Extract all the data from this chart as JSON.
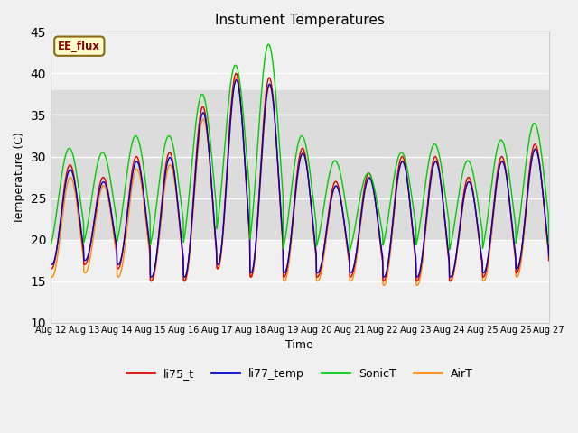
{
  "title": "Instument Temperatures",
  "xlabel": "Time",
  "ylabel": "Temperature (C)",
  "ylim": [
    10,
    45
  ],
  "xlim": [
    0,
    360
  ],
  "tick_labels": [
    "Aug 12",
    "Aug 13",
    "Aug 14",
    "Aug 15",
    "Aug 16",
    "Aug 17",
    "Aug 18",
    "Aug 19",
    "Aug 20",
    "Aug 21",
    "Aug 22",
    "Aug 23",
    "Aug 24",
    "Aug 25",
    "Aug 26",
    "Aug 27"
  ],
  "tick_positions": [
    0,
    24,
    48,
    72,
    96,
    120,
    144,
    168,
    192,
    216,
    240,
    264,
    288,
    312,
    336,
    360
  ],
  "shaded_band": [
    20,
    38
  ],
  "shaded_color": "#dcdcdc",
  "annotation_text": "EE_flux",
  "annotation_color": "#8b0000",
  "annotation_bg": "#ffffcc",
  "annotation_border": "#8b6914",
  "colors": {
    "li75_t": "#dd0000",
    "li77_temp": "#0000cc",
    "SonicT": "#00cc00",
    "AirT": "#ff8800"
  },
  "bg_color": "#f0f0f0",
  "grid_color": "white",
  "line_width": 1.0,
  "daily_peaks_base": [
    29.0,
    27.5,
    30.0,
    30.5,
    36.0,
    40.0,
    39.5,
    31.0,
    27.0,
    28.0,
    30.0,
    30.0,
    27.5,
    30.0,
    31.5,
    20.0
  ],
  "daily_mins_base": [
    16.5,
    17.0,
    16.5,
    15.0,
    15.0,
    16.5,
    15.5,
    15.5,
    15.5,
    15.5,
    15.0,
    15.0,
    15.0,
    15.5,
    16.0,
    17.5
  ],
  "sonic_daily_peaks": [
    31.0,
    30.5,
    32.5,
    32.5,
    37.5,
    41.0,
    43.5,
    32.5,
    29.5,
    28.0,
    30.5,
    31.5,
    29.5,
    32.0,
    34.0,
    20.5
  ],
  "sonic_daily_mins": [
    18.5,
    19.0,
    19.0,
    18.5,
    18.5,
    20.0,
    18.5,
    18.0,
    18.5,
    18.0,
    18.5,
    18.5,
    18.0,
    18.0,
    18.5,
    19.5
  ],
  "air_daily_peaks": [
    27.5,
    26.5,
    28.5,
    29.0,
    34.5,
    39.5,
    38.5,
    30.5,
    26.5,
    27.5,
    29.5,
    29.5,
    27.0,
    29.5,
    31.0,
    19.5
  ],
  "air_daily_mins": [
    15.5,
    16.0,
    15.5,
    15.0,
    15.0,
    16.5,
    15.5,
    15.0,
    15.0,
    15.0,
    14.5,
    14.5,
    15.0,
    15.0,
    15.5,
    17.5
  ]
}
